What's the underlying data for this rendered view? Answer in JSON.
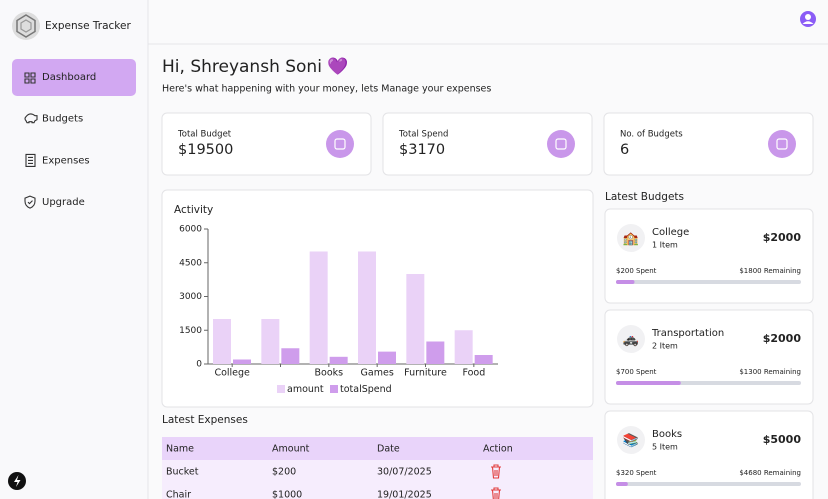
{
  "sidebar": {
    "app_name": "Expense Tracker",
    "nav": [
      "Dashboard",
      "Budgets",
      "Expenses",
      "Upgrade"
    ]
  },
  "header": {
    "greeting": "Hi, Shreyansh Soni 💜",
    "subtitle": "Here's what happening with your money, lets Manage your expenses"
  },
  "stats": [
    {
      "label": "Total Budget",
      "value": "$19500"
    },
    {
      "label": "Total Spend",
      "value": "$3170"
    },
    {
      "label": "No. of Budgets",
      "value": "6"
    }
  ],
  "chart_data": {
    "type": "bar",
    "title": "Activity",
    "categories": [
      "College",
      null,
      "Books",
      "Games",
      "Furniture",
      "Food"
    ],
    "series": [
      {
        "name": "amount",
        "color": "#ead2f7",
        "values": [
          2000,
          2000,
          5000,
          5000,
          4000,
          1500
        ]
      },
      {
        "name": "totalSpend",
        "color": "#cf9dec",
        "values": [
          200,
          700,
          320,
          550,
          1000,
          400
        ]
      }
    ],
    "ylim": [
      0,
      6000
    ],
    "yticks": [
      0,
      1500,
      3000,
      4500,
      6000
    ],
    "grid": false,
    "legend": "bottom"
  },
  "latest_budgets": {
    "title": "Latest Budgets",
    "items": [
      {
        "icon": "🏫",
        "name": "College",
        "count": "1 Item",
        "amount": "$2000",
        "spent": "$200 Spent",
        "remaining": "$1800 Remaining"
      },
      {
        "icon": "🚓",
        "name": "Transportation",
        "count": "2 Item",
        "amount": "$2000",
        "spent": "$700 Spent",
        "remaining": "$1300 Remaining"
      },
      {
        "icon": "📚",
        "name": "Books",
        "count": "5 Item",
        "amount": "$5000",
        "spent": "$320 Spent",
        "remaining": "$4680 Remaining"
      }
    ]
  },
  "latest_expenses": {
    "title": "Latest Expenses",
    "columns": [
      "Name",
      "Amount",
      "Date",
      "Action"
    ],
    "rows": [
      [
        "Bucket",
        "$200",
        "30/07/2025"
      ],
      [
        "Chair",
        "$1000",
        "19/01/2025"
      ]
    ]
  }
}
